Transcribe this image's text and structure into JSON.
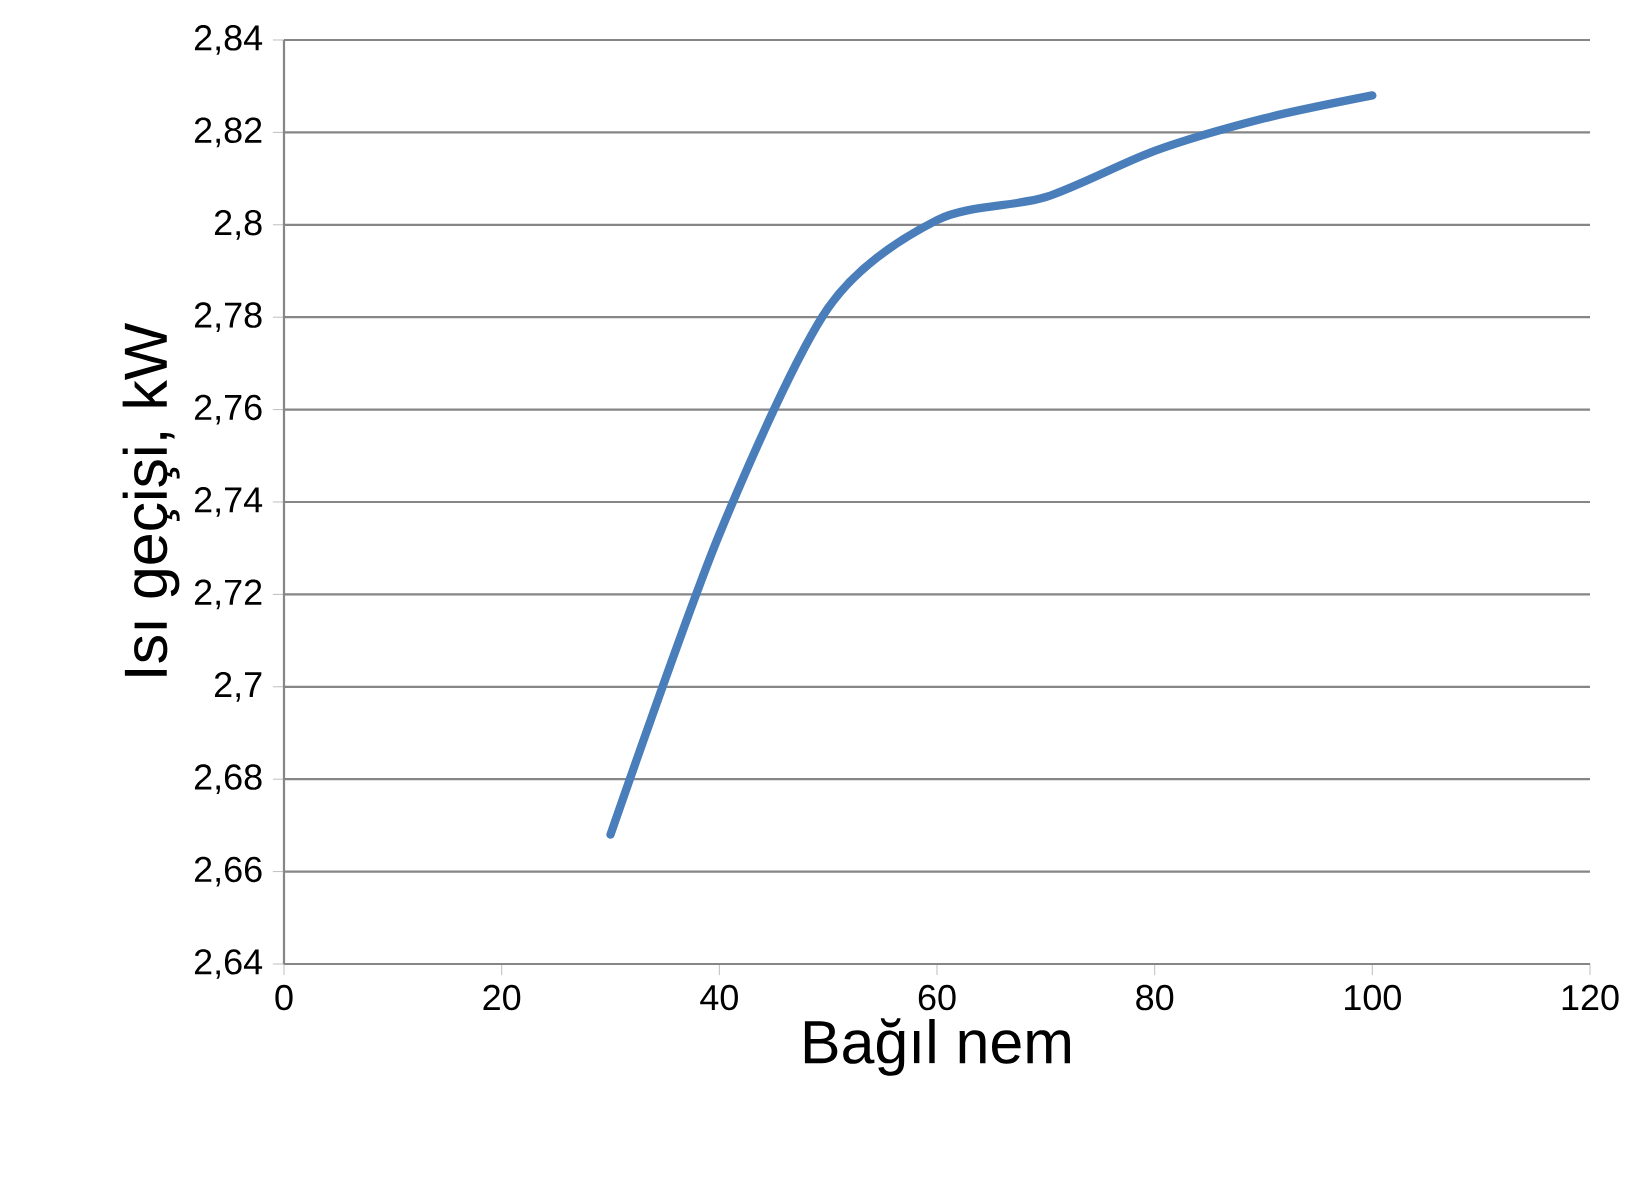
{
  "chart_data": {
    "type": "line",
    "xlabel": "Bağıl nem",
    "ylabel": "Isı geçişi, kW",
    "x": [
      30,
      40,
      50,
      60,
      70,
      80,
      90,
      100
    ],
    "series": [
      {
        "color": "#4a7ebb",
        "values": [
          2.668,
          2.733,
          2.782,
          2.801,
          2.806,
          2.816,
          2.823,
          2.828
        ]
      }
    ],
    "xlim": [
      0,
      120
    ],
    "xticks": [
      0,
      20,
      40,
      60,
      80,
      100,
      120
    ],
    "ylim": [
      2.64,
      2.84
    ],
    "yticks": [
      {
        "value": 2.64,
        "label": "2,64"
      },
      {
        "value": 2.66,
        "label": "2,66"
      },
      {
        "value": 2.68,
        "label": "2,68"
      },
      {
        "value": 2.7,
        "label": "2,7"
      },
      {
        "value": 2.72,
        "label": "2,72"
      },
      {
        "value": 2.74,
        "label": "2,74"
      },
      {
        "value": 2.76,
        "label": "2,76"
      },
      {
        "value": 2.78,
        "label": "2,78"
      },
      {
        "value": 2.8,
        "label": "2,8"
      },
      {
        "value": 2.82,
        "label": "2,82"
      },
      {
        "value": 2.84,
        "label": "2,84"
      }
    ],
    "grid": "y",
    "marker": "none",
    "line_style": "solid"
  }
}
